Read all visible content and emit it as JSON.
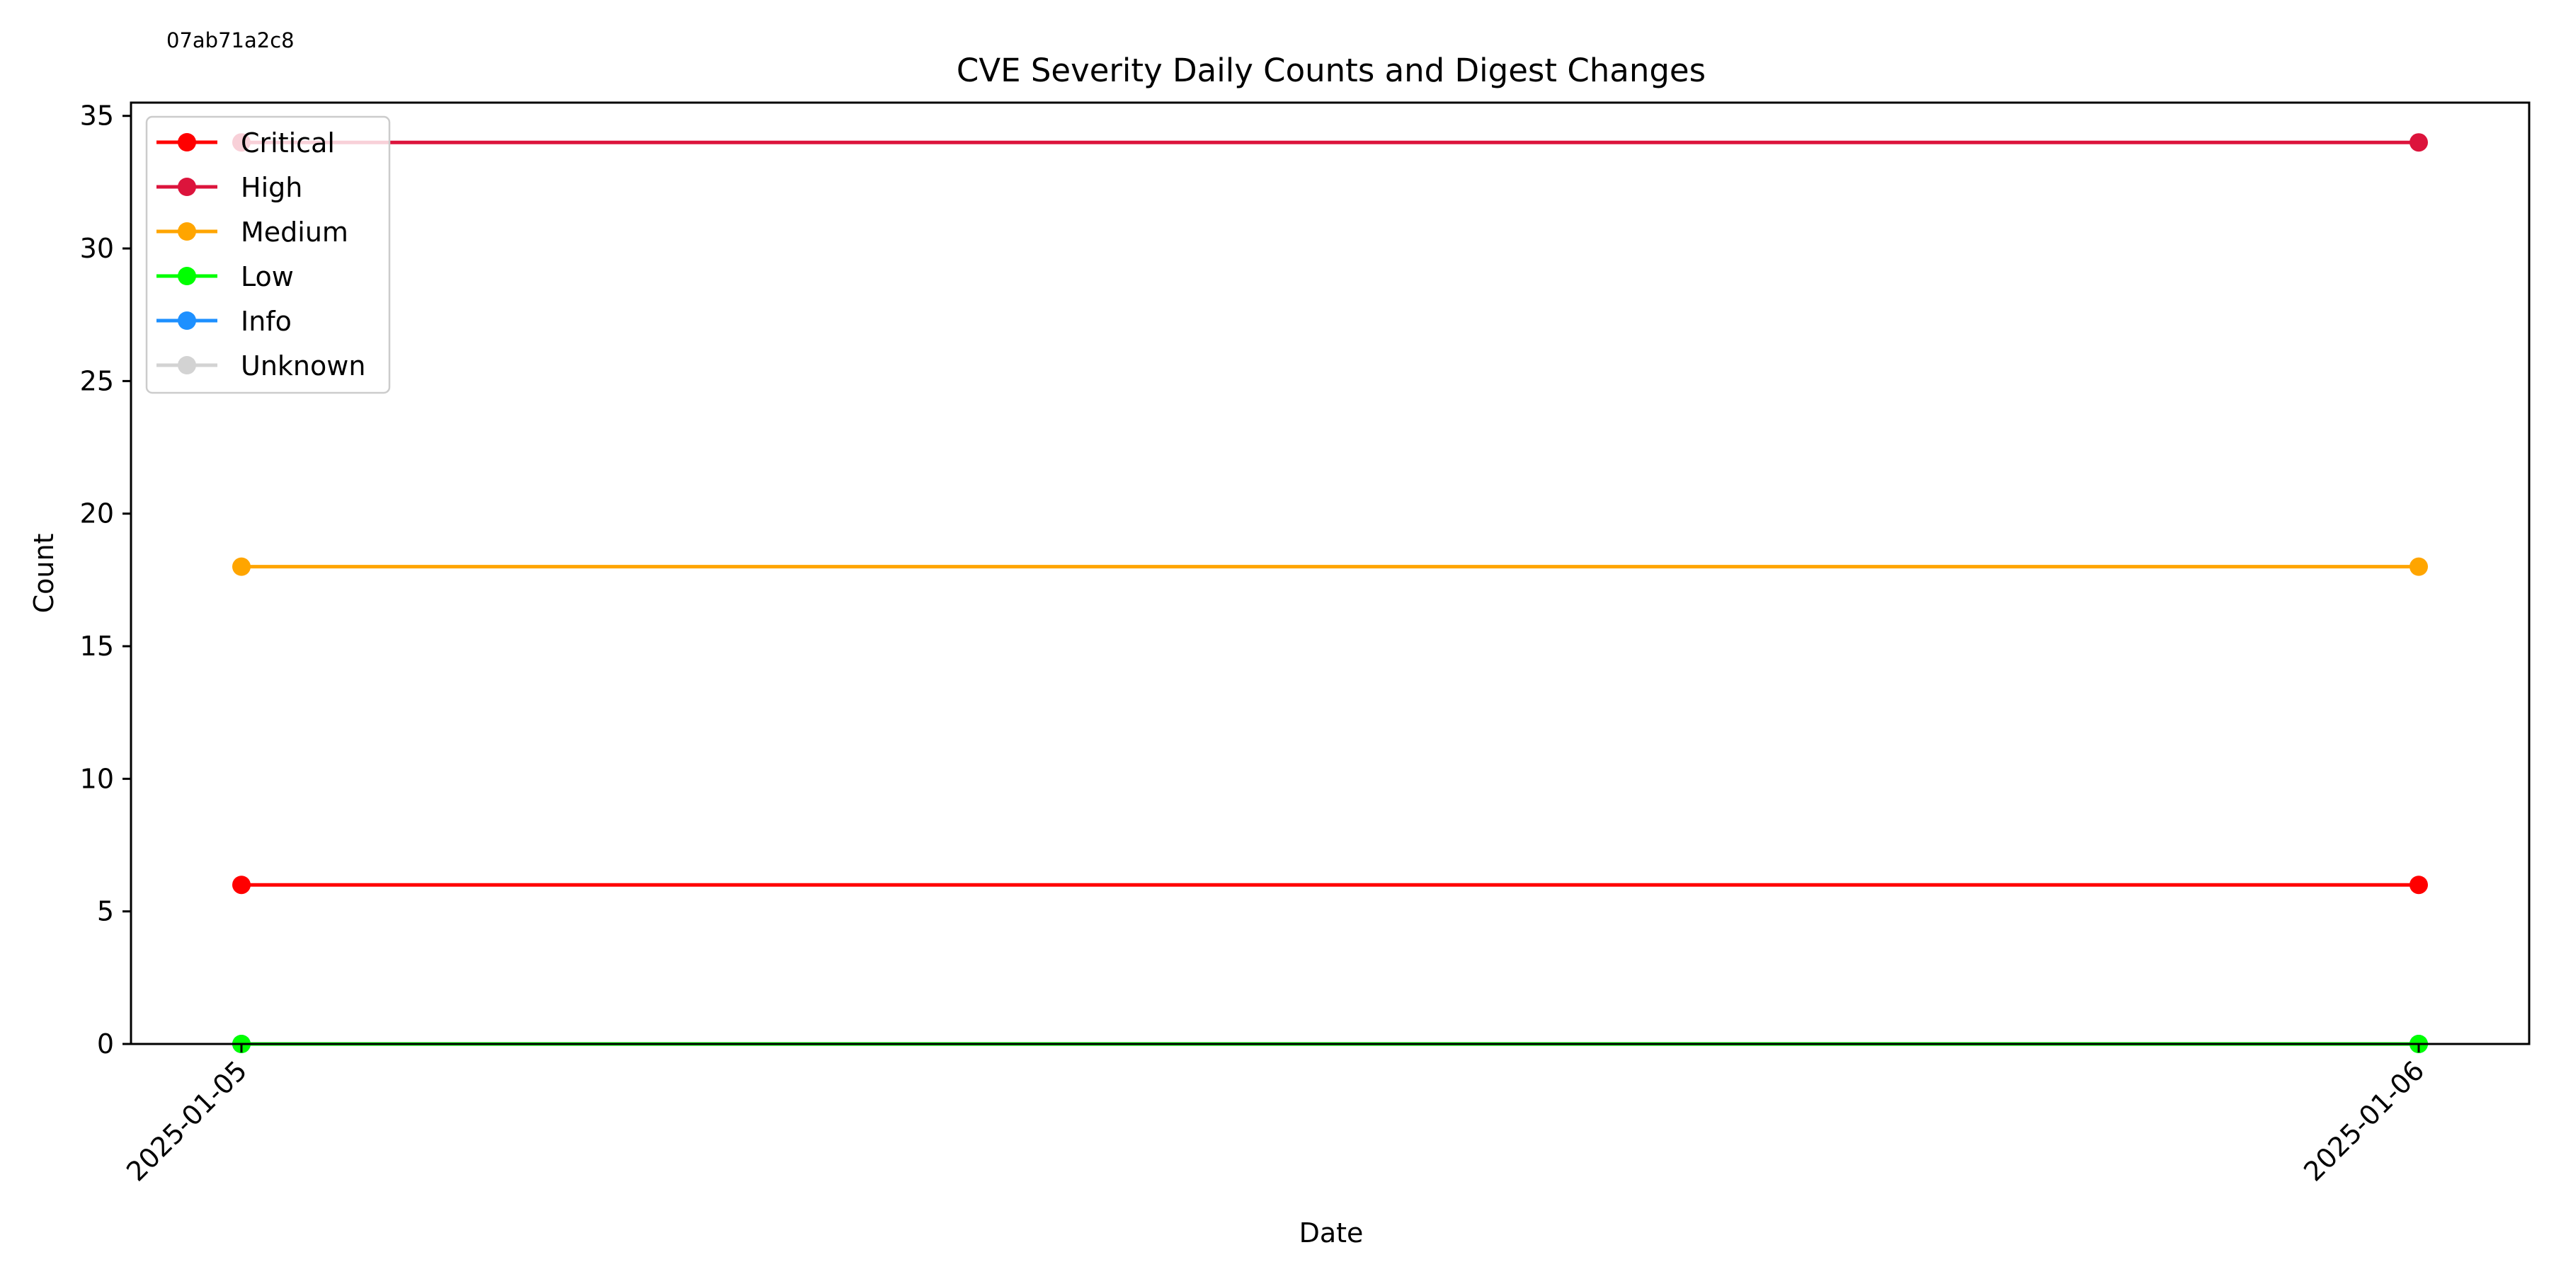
{
  "digest_label": "07ab71a2c8",
  "chart_data": {
    "type": "line",
    "title": "CVE Severity Daily Counts and Digest Changes",
    "xlabel": "Date",
    "ylabel": "Count",
    "x": [
      "2025-01-05",
      "2025-01-06"
    ],
    "ylim": [
      0,
      35.5
    ],
    "yticks": [
      0,
      5,
      10,
      15,
      20,
      25,
      30,
      35
    ],
    "grid": false,
    "legend_position": "upper-left",
    "series": [
      {
        "name": "Critical",
        "color": "#ff0000",
        "values": [
          6,
          6
        ]
      },
      {
        "name": "High",
        "color": "#dc143c",
        "values": [
          34,
          34
        ]
      },
      {
        "name": "Medium",
        "color": "#ffa500",
        "values": [
          18,
          18
        ]
      },
      {
        "name": "Low",
        "color": "#00ff00",
        "values": [
          0,
          0
        ]
      },
      {
        "name": "Info",
        "color": "#1e90ff",
        "values": [
          0,
          0
        ]
      },
      {
        "name": "Unknown",
        "color": "#d3d3d3",
        "values": [
          0,
          0
        ]
      }
    ]
  }
}
